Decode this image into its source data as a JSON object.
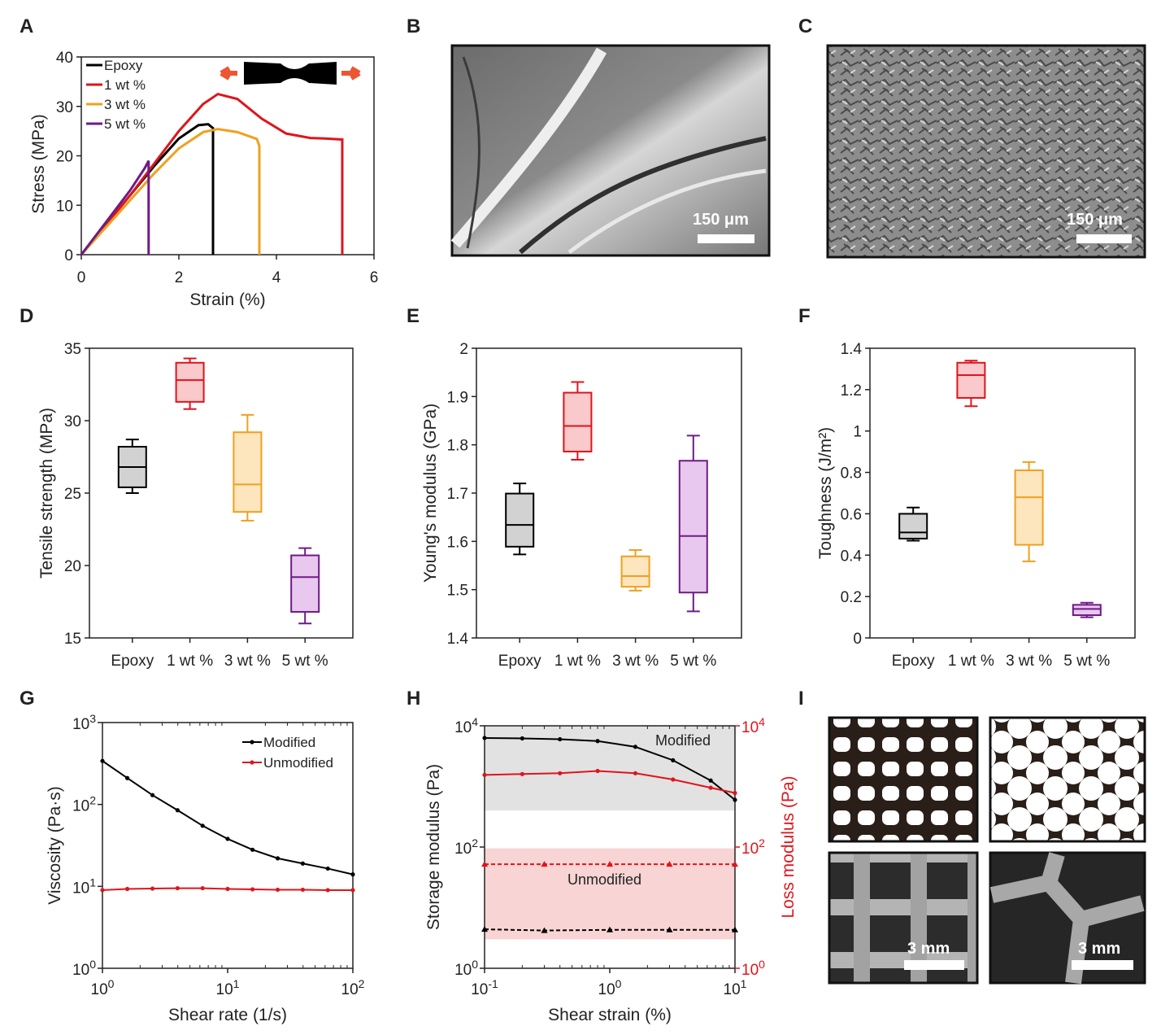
{
  "panels": {
    "A": {
      "label": "A"
    },
    "B": {
      "label": "B",
      "scale_bar": "150 μm"
    },
    "C": {
      "label": "C",
      "scale_bar": "150 μm"
    },
    "D": {
      "label": "D"
    },
    "E": {
      "label": "E"
    },
    "F": {
      "label": "F"
    },
    "G": {
      "label": "G"
    },
    "H": {
      "label": "H"
    },
    "I": {
      "label": "I",
      "scale_bars": [
        "3 mm",
        "3 mm"
      ]
    }
  },
  "chart_data": [
    {
      "panel": "A",
      "type": "line",
      "xlabel": "Strain (%)",
      "ylabel": "Stress (MPa)",
      "xlim": [
        0,
        6
      ],
      "ylim": [
        0,
        40
      ],
      "xticks": [
        "0",
        "2",
        "4",
        "6"
      ],
      "yticks": [
        "0",
        "10",
        "20",
        "30",
        "40"
      ],
      "legend_position": "top-left",
      "series": [
        {
          "name": "Epoxy",
          "color": "#000000",
          "x": [
            0,
            0.5,
            1.0,
            1.5,
            2.0,
            2.4,
            2.6,
            2.7,
            2.7
          ],
          "y": [
            0,
            6,
            12,
            18,
            23.5,
            26.2,
            26.4,
            25.6,
            0
          ]
        },
        {
          "name": "1 wt %",
          "color": "#e0141b",
          "x": [
            0,
            0.5,
            1.0,
            1.5,
            2.0,
            2.5,
            2.8,
            3.2,
            3.7,
            4.2,
            4.7,
            5.0,
            5.35,
            5.35
          ],
          "y": [
            0,
            6,
            12,
            18.5,
            25,
            30.5,
            32.5,
            31.5,
            27.5,
            24.5,
            23.6,
            23.5,
            23.3,
            0
          ]
        },
        {
          "name": "3 wt %",
          "color": "#f0a01e",
          "x": [
            0,
            0.5,
            1.0,
            1.5,
            2.0,
            2.5,
            2.8,
            3.2,
            3.6,
            3.65,
            3.65
          ],
          "y": [
            0,
            5.5,
            11,
            16.5,
            21.5,
            24.8,
            25.4,
            24.8,
            23.4,
            22,
            0
          ]
        },
        {
          "name": "5 wt %",
          "color": "#6f1a86",
          "x": [
            0,
            0.5,
            1.0,
            1.3,
            1.38,
            1.38
          ],
          "y": [
            0,
            6.5,
            13,
            17.5,
            19,
            0
          ]
        }
      ]
    },
    {
      "panel": "D",
      "type": "box",
      "ylabel": "Tensile strength (MPa)",
      "ylim": [
        15,
        35
      ],
      "yticks": [
        "15",
        "20",
        "25",
        "30",
        "35"
      ],
      "categories": [
        "Epoxy",
        "1 wt %",
        "3 wt %",
        "5 wt %"
      ],
      "boxes": [
        {
          "min": 25.0,
          "q1": 25.4,
          "median": 26.8,
          "q3": 28.2,
          "max": 28.7
        },
        {
          "min": 30.8,
          "q1": 31.3,
          "median": 32.8,
          "q3": 34.0,
          "max": 34.3
        },
        {
          "min": 23.1,
          "q1": 23.7,
          "median": 25.6,
          "q3": 29.2,
          "max": 30.4
        },
        {
          "min": 16.0,
          "q1": 16.8,
          "median": 19.2,
          "q3": 20.7,
          "max": 21.2
        }
      ]
    },
    {
      "panel": "E",
      "type": "box",
      "ylabel": "Young's modulus (GPa)",
      "ylim": [
        1.4,
        2.0
      ],
      "yticks": [
        "1.4",
        "1.5",
        "1.6",
        "1.7",
        "1.8",
        "1.9",
        "2"
      ],
      "categories": [
        "Epoxy",
        "1 wt %",
        "3 wt %",
        "5 wt %"
      ],
      "boxes": [
        {
          "min": 1.573,
          "q1": 1.589,
          "median": 1.634,
          "q3": 1.699,
          "max": 1.72
        },
        {
          "min": 1.769,
          "q1": 1.786,
          "median": 1.839,
          "q3": 1.908,
          "max": 1.93
        },
        {
          "min": 1.498,
          "q1": 1.506,
          "median": 1.528,
          "q3": 1.569,
          "max": 1.582
        },
        {
          "min": 1.455,
          "q1": 1.494,
          "median": 1.611,
          "q3": 1.767,
          "max": 1.819
        }
      ]
    },
    {
      "panel": "F",
      "type": "box",
      "ylabel": "Toughness (J/m²)",
      "ylim": [
        0,
        1.4
      ],
      "yticks": [
        "0",
        "0.2",
        "0.4",
        "0.6",
        "0.8",
        "1",
        "1.2",
        "1.4"
      ],
      "categories": [
        "Epoxy",
        "1 wt %",
        "3 wt %",
        "5 wt %"
      ],
      "boxes": [
        {
          "min": 0.47,
          "q1": 0.48,
          "median": 0.51,
          "q3": 0.6,
          "max": 0.63
        },
        {
          "min": 1.12,
          "q1": 1.16,
          "median": 1.27,
          "q3": 1.33,
          "max": 1.34
        },
        {
          "min": 0.37,
          "q1": 0.45,
          "median": 0.68,
          "q3": 0.81,
          "max": 0.85
        },
        {
          "min": 0.1,
          "q1": 0.11,
          "median": 0.14,
          "q3": 0.16,
          "max": 0.17
        }
      ]
    },
    {
      "panel": "G",
      "type": "line",
      "scale": "log-log",
      "xlabel": "Shear rate (1/s)",
      "ylabel": "Viscosity (Pa·s)",
      "xlim": [
        1,
        100
      ],
      "ylim": [
        1,
        1000
      ],
      "xticks": [
        "10^0",
        "10^1",
        "10^2"
      ],
      "yticks": [
        "10^0",
        "10^1",
        "10^2",
        "10^3"
      ],
      "legend_position": "top-right",
      "series": [
        {
          "name": "Modified",
          "color": "#000000",
          "x": [
            1,
            1.58,
            2.51,
            3.98,
            6.31,
            10,
            15.8,
            25.1,
            39.8,
            63.1,
            100
          ],
          "y": [
            340,
            210,
            130,
            85,
            55,
            38,
            28,
            22,
            19,
            16.5,
            14
          ]
        },
        {
          "name": "Unmodified",
          "color": "#e0141b",
          "x": [
            1,
            1.58,
            2.51,
            3.98,
            6.31,
            10,
            15.8,
            25.1,
            39.8,
            63.1,
            100
          ],
          "y": [
            9.0,
            9.3,
            9.4,
            9.5,
            9.5,
            9.3,
            9.2,
            9.1,
            9.1,
            9.0,
            9.0
          ]
        }
      ]
    },
    {
      "panel": "H",
      "type": "line",
      "scale": "log-log",
      "xlabel": "Shear strain (%)",
      "ylabel": "Storage modulus (Pa)",
      "ylabel_right": "Loss modulus (Pa)",
      "ylabel_right_color": "#e0141b",
      "xlim": [
        0.1,
        10
      ],
      "ylim": [
        1,
        10000
      ],
      "xticks": [
        "10^-1",
        "10^0",
        "10^1"
      ],
      "yticks": [
        "10^0",
        "10^2",
        "10^4"
      ],
      "region_labels": [
        "Modified",
        "Unmodified"
      ],
      "series": [
        {
          "name": "Modified storage",
          "color": "#000000",
          "x": [
            0.1,
            0.2,
            0.4,
            0.8,
            1.6,
            3.2,
            6.4,
            10
          ],
          "y": [
            6300,
            6200,
            6000,
            5600,
            4500,
            2700,
            1250,
            600
          ]
        },
        {
          "name": "Modified loss",
          "color": "#e0141b",
          "x": [
            0.1,
            0.2,
            0.4,
            0.8,
            1.6,
            3.2,
            6.4,
            10
          ],
          "y": [
            1550,
            1600,
            1650,
            1800,
            1650,
            1300,
            950,
            780
          ]
        },
        {
          "name": "Unmodified loss",
          "color": "#e0141b",
          "x": [
            0.1,
            0.3,
            1,
            3,
            10
          ],
          "y": [
            52,
            52,
            52,
            52,
            52
          ]
        },
        {
          "name": "Unmodified storage",
          "color": "#000000",
          "x": [
            0.1,
            0.3,
            1,
            3,
            10
          ],
          "y": [
            4.4,
            4.2,
            4.3,
            4.3,
            4.3
          ]
        }
      ]
    }
  ]
}
